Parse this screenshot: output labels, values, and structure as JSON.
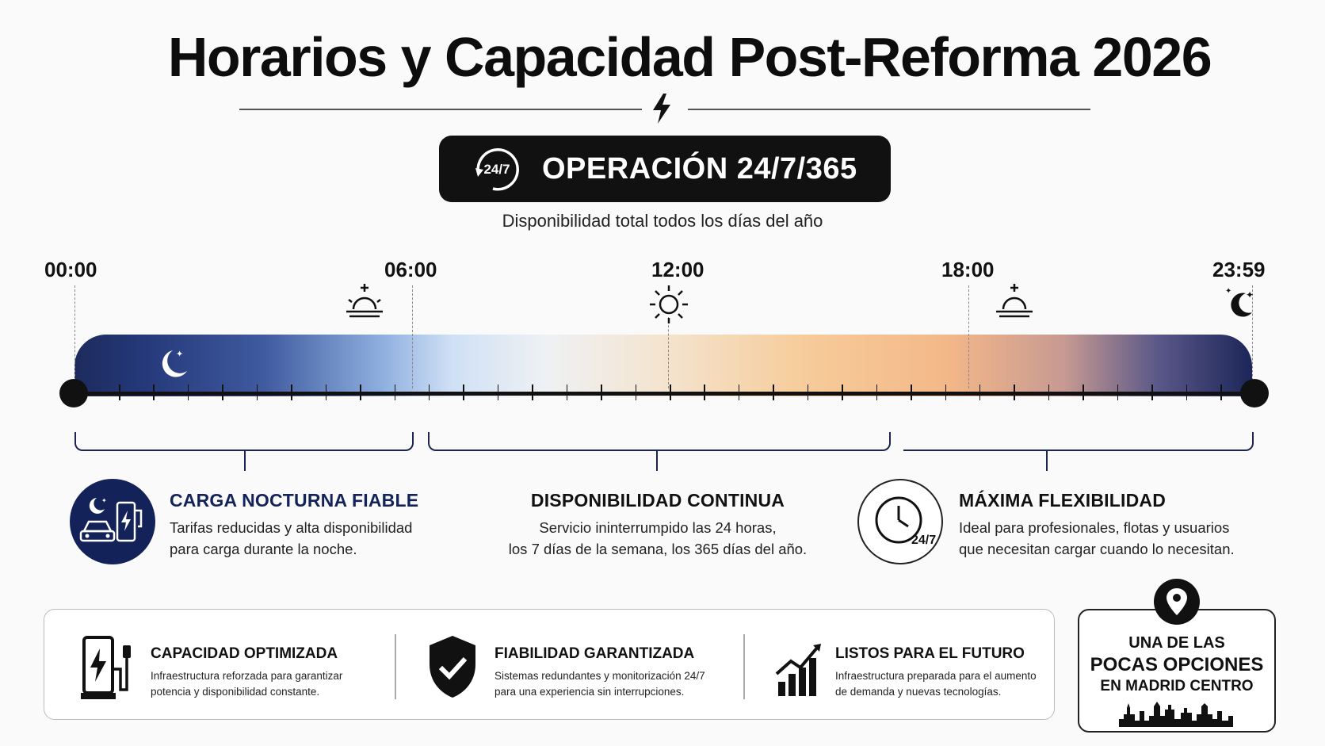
{
  "header": {
    "title": "Horarios y Capacidad Post-Reforma 2026",
    "badge_icon_text": "24/7",
    "badge_text": "OPERACIÓN 24/7/365",
    "subtitle": "Disponibilidad total todos los días del año"
  },
  "timeline": {
    "times": [
      "00:00",
      "06:00",
      "12:00",
      "18:00",
      "23:59"
    ],
    "colors": {
      "night": "#1d2a5c",
      "day": "#f4b888",
      "brand": "#13235a"
    }
  },
  "features": [
    {
      "title": "CARGA NOCTURNA FIABLE",
      "text_line1": "Tarifas reducidas y alta disponibilidad",
      "text_line2": "para carga durante la noche.",
      "icon": "night-charging-icon"
    },
    {
      "title": "DISPONIBILIDAD CONTINUA",
      "text_line1": "Servicio ininterrumpido las 24 horas,",
      "text_line2": "los 7 días de la semana, los 365 días del año."
    },
    {
      "title": "MÁXIMA FLEXIBILIDAD",
      "text_line1": "Ideal para profesionales, flotas y usuarios",
      "text_line2": "que necesitan cargar cuando lo necesitan.",
      "icon": "clock-24-7-icon",
      "icon_text": "24/7"
    }
  ],
  "benefits": [
    {
      "title": "CAPACIDAD OPTIMIZADA",
      "text_line1": "Infraestructura reforzada para garantizar",
      "text_line2": "potencia y disponibilidad constante.",
      "icon": "charging-station-icon"
    },
    {
      "title": "FIABILIDAD GARANTIZADA",
      "text_line1": "Sistemas redundantes y monitorización 24/7",
      "text_line2": "para una experiencia sin interrupciones.",
      "icon": "shield-check-icon"
    },
    {
      "title": "LISTOS PARA EL FUTURO",
      "text_line1": "Infraestructura preparada para el aumento",
      "text_line2": "de demanda y nuevas tecnologías.",
      "icon": "growth-chart-icon"
    }
  ],
  "madrid": {
    "line1": "UNA DE LAS",
    "line2": "POCAS OPCIONES",
    "line3": "EN MADRID CENTRO",
    "icon": "location-pin-icon"
  }
}
